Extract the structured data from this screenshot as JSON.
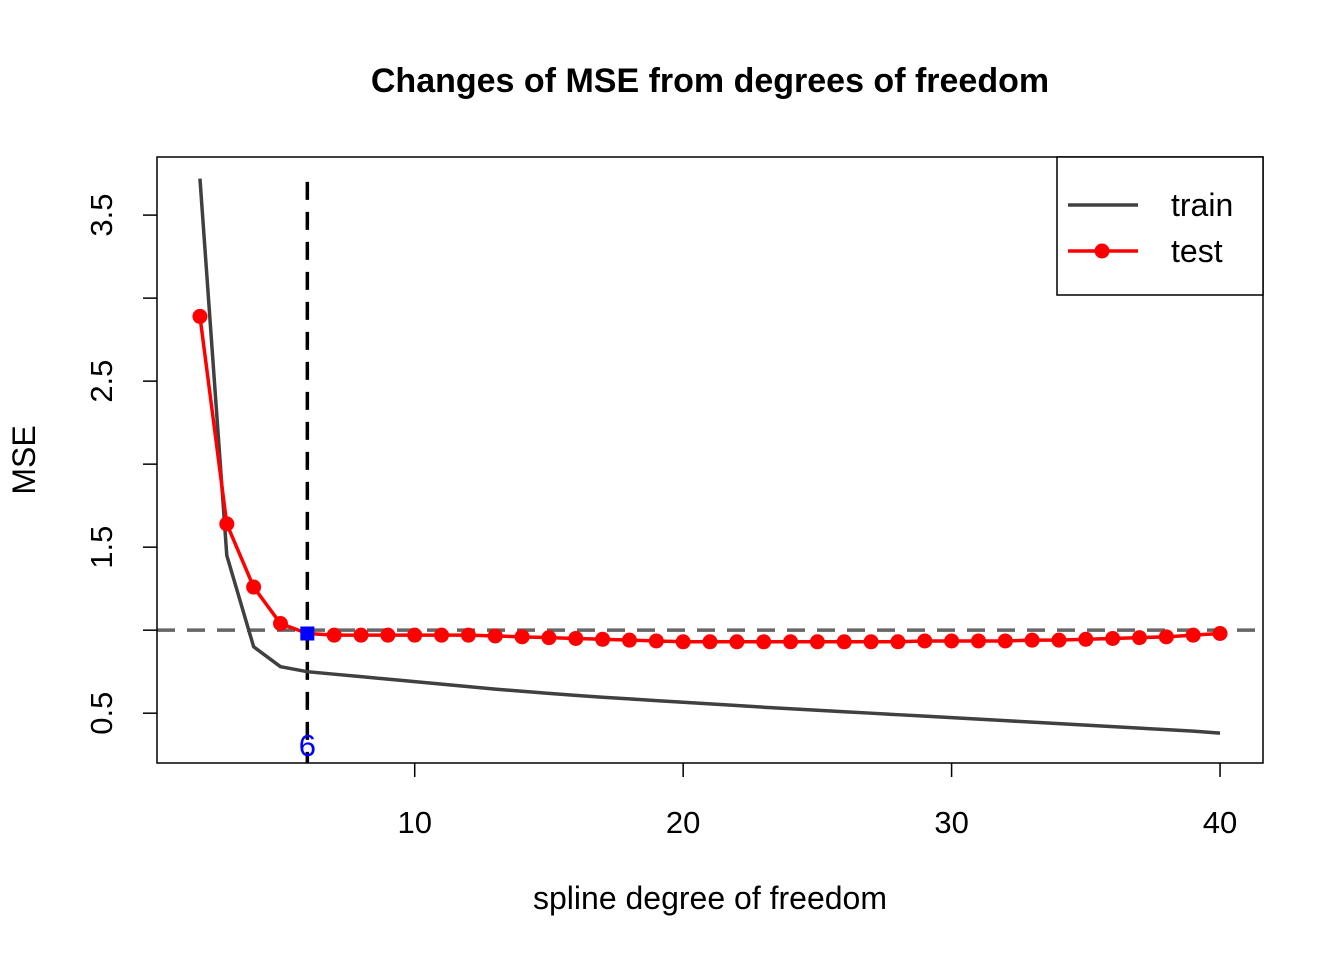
{
  "chart_data": {
    "type": "line",
    "title": "Changes of MSE from degrees of freedom",
    "xlabel": "spline degree of freedom",
    "ylabel": "MSE",
    "xlim": [
      0.4,
      41.6
    ],
    "ylim": [
      0.2,
      3.85
    ],
    "x_ticks": [
      10,
      20,
      30,
      40
    ],
    "y_ticks": [
      0.5,
      1.5,
      2.5,
      3.5
    ],
    "x_tick_labels": [
      "10",
      "20",
      "30",
      "40"
    ],
    "y_tick_labels": [
      "0.5",
      "1.5",
      "2.5",
      "3.5"
    ],
    "y_minor_ticks": [
      1.0,
      2.0,
      3.0
    ],
    "grid": false,
    "legend_position": "top-right",
    "series": [
      {
        "name": "train",
        "color": "#404040",
        "marker": "none",
        "x": [
          2,
          3,
          4,
          5,
          6,
          7,
          8,
          9,
          10,
          11,
          12,
          13,
          14,
          15,
          16,
          17,
          18,
          19,
          20,
          21,
          22,
          23,
          24,
          25,
          26,
          27,
          28,
          29,
          30,
          31,
          32,
          33,
          34,
          35,
          36,
          37,
          38,
          39,
          40
        ],
        "values": [
          3.72,
          1.45,
          0.9,
          0.78,
          0.75,
          0.735,
          0.72,
          0.705,
          0.69,
          0.675,
          0.66,
          0.645,
          0.632,
          0.619,
          0.607,
          0.596,
          0.586,
          0.576,
          0.566,
          0.556,
          0.546,
          0.536,
          0.527,
          0.518,
          0.509,
          0.5,
          0.491,
          0.482,
          0.473,
          0.464,
          0.455,
          0.446,
          0.437,
          0.428,
          0.419,
          0.41,
          0.401,
          0.392,
          0.38
        ]
      },
      {
        "name": "test",
        "color": "#ff0000",
        "marker": "circle",
        "x": [
          2,
          3,
          4,
          5,
          6,
          7,
          8,
          9,
          10,
          11,
          12,
          13,
          14,
          15,
          16,
          17,
          18,
          19,
          20,
          21,
          22,
          23,
          24,
          25,
          26,
          27,
          28,
          29,
          30,
          31,
          32,
          33,
          34,
          35,
          36,
          37,
          38,
          39,
          40
        ],
        "values": [
          2.89,
          1.64,
          1.26,
          1.04,
          0.98,
          0.97,
          0.97,
          0.97,
          0.97,
          0.97,
          0.97,
          0.965,
          0.96,
          0.955,
          0.95,
          0.945,
          0.94,
          0.935,
          0.93,
          0.93,
          0.93,
          0.93,
          0.93,
          0.93,
          0.93,
          0.93,
          0.93,
          0.935,
          0.935,
          0.935,
          0.935,
          0.94,
          0.94,
          0.945,
          0.95,
          0.955,
          0.96,
          0.97,
          0.98
        ]
      }
    ],
    "reference_lines": {
      "horizontal": {
        "y": 1.0,
        "color": "#666666",
        "style": "dashed"
      },
      "vertical": {
        "x": 6,
        "color": "#000000",
        "style": "dashed"
      }
    },
    "highlight": {
      "x": 6,
      "y": 0.98,
      "color": "#0000ff",
      "marker": "square"
    },
    "annotation": {
      "text": "6",
      "x": 6,
      "color": "#0000ff"
    }
  }
}
